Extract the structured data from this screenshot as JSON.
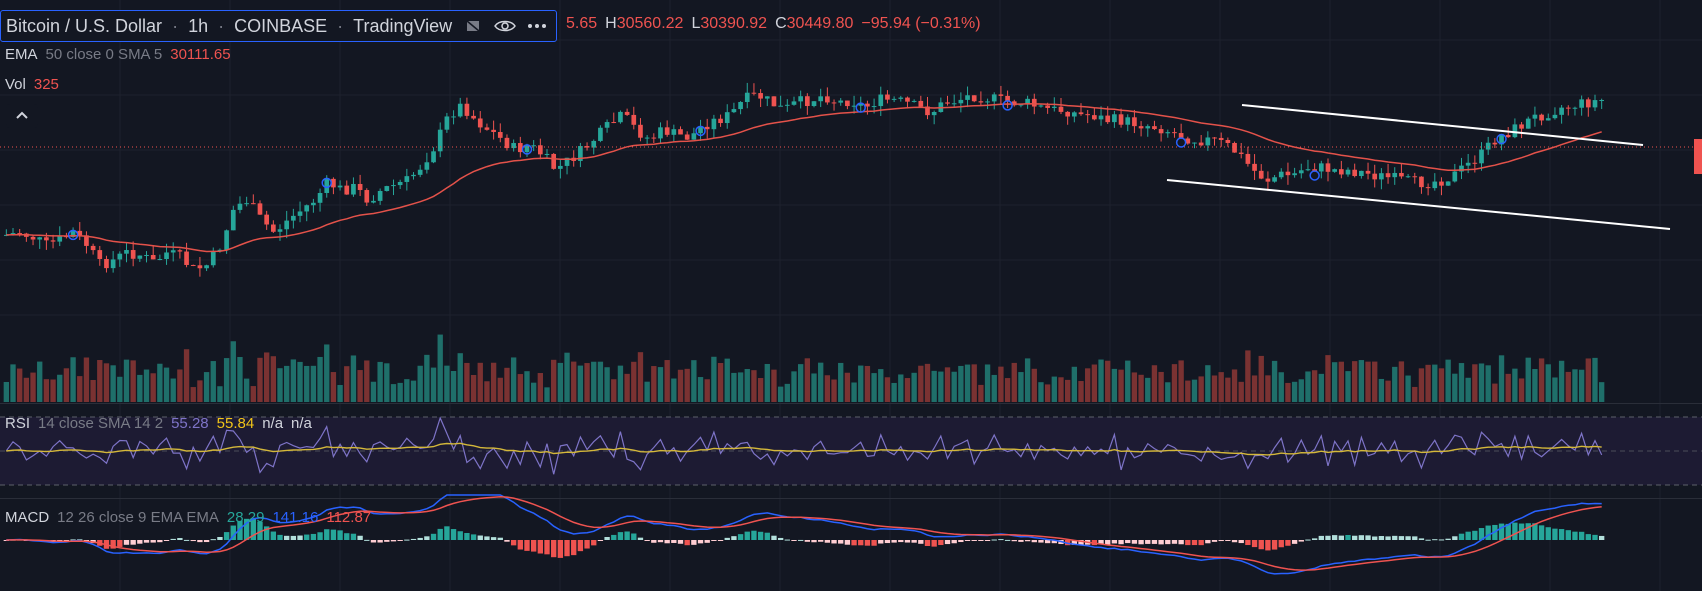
{
  "header": {
    "symbol": "Bitcoin / U.S. Dollar",
    "interval": "1h",
    "exchange": "COINBASE",
    "source": "TradingView",
    "sep": "·",
    "ohlc_prefix": "5.65",
    "high_label": "H",
    "high": "30560.22",
    "low_label": "L",
    "low": "30390.92",
    "close_label": "C",
    "close": "30449.80",
    "change": "−95.94 (−0.31%)"
  },
  "ema": {
    "name": "EMA",
    "params": "50 close 0 SMA 5",
    "value": "30111.65"
  },
  "vol": {
    "name": "Vol",
    "value": "325"
  },
  "rsi": {
    "name": "RSI",
    "params": "14 close SMA 14 2",
    "value1": "55.28",
    "value2": "55.84",
    "na1": "n/a",
    "na2": "n/a"
  },
  "macd": {
    "name": "MACD",
    "params": "12 26 close 9 EMA EMA",
    "hist": "28.29",
    "macd": "141.16",
    "signal": "112.87"
  },
  "colors": {
    "bg": "#131722",
    "up": "#26a69a",
    "down": "#ef5350",
    "ema": "#e4524a",
    "rsi": "#7e74c8",
    "rsi_ma": "#d4b83a",
    "macd": "#2962ff",
    "signal": "#ef5350",
    "trend": "#ffffff",
    "grid": "#1e222d"
  },
  "icons": [
    "eye-icon",
    "more-icon",
    "chart-style-icon",
    "collapse-chevron-icon"
  ],
  "chart_data": {
    "type": "candlestick",
    "symbol": "Bitcoin / U.S. Dollar",
    "interval": "1h",
    "close_profile": [
      0.44,
      0.45,
      0.43,
      0.4,
      0.42,
      0.45,
      0.4,
      0.32,
      0.34,
      0.37,
      0.36,
      0.33,
      0.37,
      0.35,
      0.3,
      0.32,
      0.4,
      0.55,
      0.58,
      0.5,
      0.45,
      0.5,
      0.54,
      0.58,
      0.65,
      0.62,
      0.63,
      0.58,
      0.62,
      0.64,
      0.66,
      0.72,
      0.8,
      0.92,
      0.96,
      0.9,
      0.86,
      0.82,
      0.78,
      0.8,
      0.76,
      0.7,
      0.74,
      0.78,
      0.83,
      0.88,
      0.92,
      0.86,
      0.82,
      0.86,
      0.84,
      0.83,
      0.88,
      0.9,
      0.92,
      0.98,
      1.0,
      0.97,
      0.94,
      0.97,
      0.98,
      1.0,
      0.97,
      0.98,
      0.95,
      0.98,
      0.98,
      0.97,
      0.95,
      0.93,
      0.97,
      0.98,
      1.0,
      0.99,
      0.98,
      0.97,
      0.97,
      0.95,
      0.94,
      0.94,
      0.92,
      0.92,
      0.9,
      0.9,
      0.89,
      0.88,
      0.87,
      0.85,
      0.83,
      0.82,
      0.82,
      0.8,
      0.76,
      0.7,
      0.66,
      0.68,
      0.68,
      0.71,
      0.71,
      0.7,
      0.7,
      0.69,
      0.68,
      0.67,
      0.66,
      0.65,
      0.65,
      0.66,
      0.68,
      0.72,
      0.76,
      0.82,
      0.85,
      0.88,
      0.91,
      0.93,
      0.95,
      0.96,
      0.97,
      0.98
    ],
    "lines": [
      "Descending channel upper trendline",
      "Descending channel lower trendline"
    ]
  }
}
